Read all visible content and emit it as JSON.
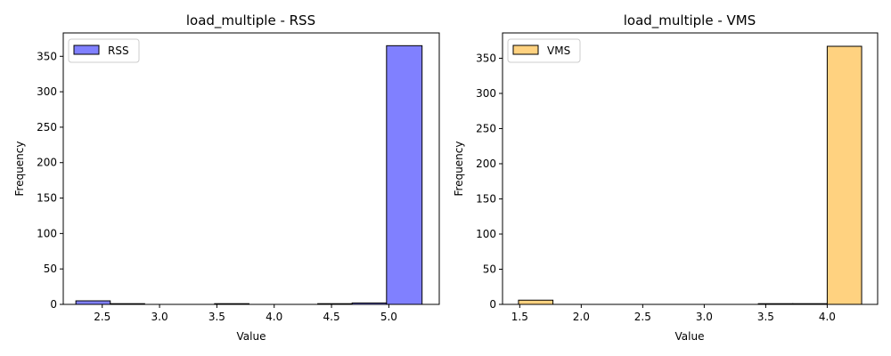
{
  "chart_data": [
    {
      "type": "bar",
      "title": "load_multiple - RSS",
      "xlabel": "Value",
      "ylabel": "Frequency",
      "xlim": [
        2.16,
        5.44
      ],
      "ylim": [
        0,
        383
      ],
      "xticks": [
        2.5,
        3.0,
        3.5,
        4.0,
        4.5,
        5.0
      ],
      "yticks": [
        0,
        50,
        100,
        150,
        200,
        250,
        300,
        350
      ],
      "legend": {
        "position": "top-left",
        "entries": [
          "RSS"
        ]
      },
      "grid": false,
      "series": [
        {
          "name": "RSS",
          "color": "#8080ff",
          "bins": [
            {
              "x0": 2.27,
              "x1": 2.57,
              "count": 5
            },
            {
              "x0": 2.57,
              "x1": 2.87,
              "count": 1
            },
            {
              "x0": 2.87,
              "x1": 3.17,
              "count": 0
            },
            {
              "x0": 3.17,
              "x1": 3.48,
              "count": 0
            },
            {
              "x0": 3.48,
              "x1": 3.78,
              "count": 1
            },
            {
              "x0": 3.78,
              "x1": 4.08,
              "count": 0
            },
            {
              "x0": 4.08,
              "x1": 4.38,
              "count": 0
            },
            {
              "x0": 4.38,
              "x1": 4.68,
              "count": 1
            },
            {
              "x0": 4.68,
              "x1": 4.98,
              "count": 2
            },
            {
              "x0": 4.98,
              "x1": 5.29,
              "count": 365
            }
          ]
        }
      ]
    },
    {
      "type": "bar",
      "title": "load_multiple - VMS",
      "xlabel": "Value",
      "ylabel": "Frequency",
      "xlim": [
        1.36,
        4.41
      ],
      "ylim": [
        0,
        386
      ],
      "xticks": [
        1.5,
        2.0,
        2.5,
        3.0,
        3.5,
        4.0
      ],
      "yticks": [
        0,
        50,
        100,
        150,
        200,
        250,
        300,
        350
      ],
      "legend": {
        "position": "top-left",
        "entries": [
          "VMS"
        ]
      },
      "grid": false,
      "series": [
        {
          "name": "VMS",
          "color": "#ffd280",
          "bins": [
            {
              "x0": 1.49,
              "x1": 1.77,
              "count": 6
            },
            {
              "x0": 1.77,
              "x1": 2.05,
              "count": 0
            },
            {
              "x0": 2.05,
              "x1": 2.33,
              "count": 0
            },
            {
              "x0": 2.33,
              "x1": 2.61,
              "count": 0
            },
            {
              "x0": 2.61,
              "x1": 2.88,
              "count": 0
            },
            {
              "x0": 2.88,
              "x1": 3.16,
              "count": 0
            },
            {
              "x0": 3.16,
              "x1": 3.44,
              "count": 0
            },
            {
              "x0": 3.44,
              "x1": 3.72,
              "count": 1
            },
            {
              "x0": 3.72,
              "x1": 4.0,
              "count": 1
            },
            {
              "x0": 4.0,
              "x1": 4.28,
              "count": 367
            }
          ]
        }
      ]
    }
  ]
}
